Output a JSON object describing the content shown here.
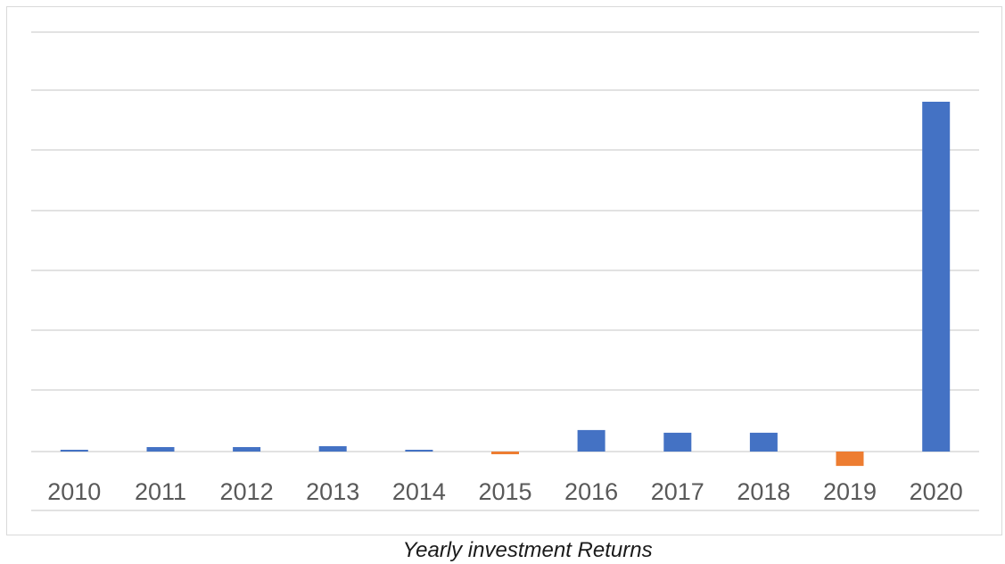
{
  "caption": "Yearly investment Returns",
  "colors": {
    "positive": "#4472c4",
    "negative": "#ed7d31",
    "gridline": "#d9d9d9",
    "tick_text": "#595959"
  },
  "chart_data": {
    "type": "bar",
    "categories": [
      "2010",
      "2011",
      "2012",
      "2013",
      "2014",
      "2015",
      "2016",
      "2017",
      "2018",
      "2019",
      "2020"
    ],
    "series": [
      {
        "values": [
          0.1,
          0.25,
          0.25,
          0.3,
          0.1,
          -0.15,
          1.2,
          1.05,
          1.05,
          -0.8,
          19.5
        ]
      }
    ],
    "ylim": [
      -2,
      21
    ],
    "grid": true,
    "legend": "none",
    "title": "",
    "xlabel": "",
    "ylabel": ""
  }
}
